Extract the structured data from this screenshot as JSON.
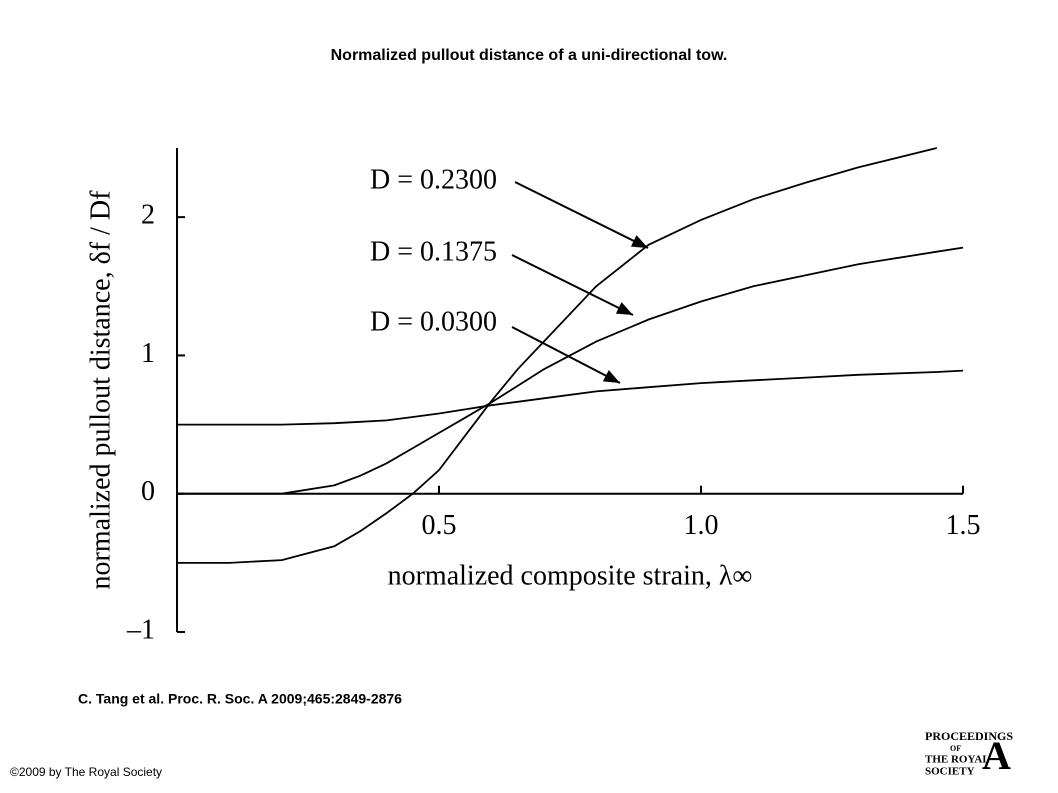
{
  "chart_data": {
    "type": "line",
    "title": "Normalized pullout distance of a uni-directional tow.",
    "xlabel": "normalized composite strain, λ∞",
    "ylabel": "normalized pullout distance, δf / Df",
    "x": [
      0,
      0.1,
      0.2,
      0.3,
      0.35,
      0.4,
      0.45,
      0.5,
      0.55,
      0.6,
      0.65,
      0.7,
      0.8,
      0.9,
      1.0,
      1.1,
      1.2,
      1.3,
      1.45,
      1.5
    ],
    "series": [
      {
        "name": "D = 0.2300",
        "color": "#000000",
        "values": [
          -0.5,
          -0.5,
          -0.48,
          -0.38,
          -0.27,
          -0.14,
          0.0,
          0.17,
          0.42,
          0.67,
          0.9,
          1.1,
          1.5,
          1.8,
          1.98,
          2.13,
          2.25,
          2.36,
          2.5,
          null
        ]
      },
      {
        "name": "D = 0.1375",
        "color": "#000000",
        "values": [
          0,
          0,
          0,
          0.06,
          0.13,
          0.22,
          0.33,
          0.44,
          0.55,
          0.66,
          0.78,
          0.9,
          1.1,
          1.26,
          1.39,
          1.5,
          1.58,
          1.66,
          1.75,
          1.78
        ]
      },
      {
        "name": "D = 0.0300",
        "color": "#000000",
        "values": [
          0.5,
          0.5,
          0.5,
          0.51,
          0.52,
          0.53,
          0.555,
          0.58,
          0.61,
          0.64,
          0.665,
          0.69,
          0.74,
          0.77,
          0.8,
          0.82,
          0.84,
          0.86,
          0.88,
          0.89
        ]
      }
    ],
    "xlim": [
      0,
      1.5
    ],
    "xticks": [
      0.5,
      {
        "value": 1.0,
        "label": "1.0"
      },
      1.5
    ],
    "ylim": [
      -1,
      2.5
    ],
    "yticks": [
      {
        "value": -1,
        "label": "–1"
      },
      0,
      1,
      2
    ],
    "citation": "C. Tang et al. Proc. R. Soc. A 2009;465:2849-2876",
    "copyright": "©2009 by The Royal Society",
    "logo": [
      "PROCEEDINGS",
      "OF",
      "THE ROYAL",
      "SOCIETY",
      "A"
    ]
  }
}
